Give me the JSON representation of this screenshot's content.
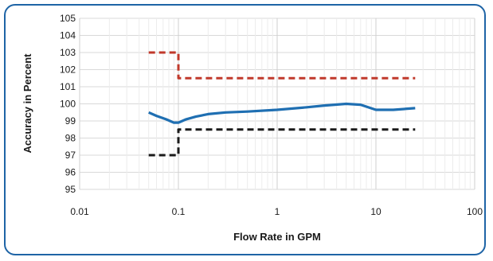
{
  "chart_data": {
    "type": "line",
    "title": "",
    "xlabel": "Flow Rate in GPM",
    "ylabel": "Accuracy in Percent",
    "x_scale": "log",
    "xlim": [
      0.01,
      100
    ],
    "ylim": [
      95,
      105
    ],
    "x_tick_labels": [
      "0.01",
      "0.1",
      "1",
      "10",
      "100"
    ],
    "y_tick_labels": [
      "95",
      "96",
      "97",
      "98",
      "99",
      "100",
      "101",
      "102",
      "103",
      "104",
      "105"
    ],
    "grid": true,
    "legend": "none",
    "series": [
      {
        "color": "#1f6fb2",
        "style": "solid",
        "x": [
          0.05,
          0.06,
          0.075,
          0.09,
          0.1,
          0.12,
          0.15,
          0.2,
          0.3,
          0.5,
          1,
          2,
          3,
          5,
          7,
          10,
          15,
          25
        ],
        "y": [
          99.5,
          99.3,
          99.1,
          98.9,
          98.9,
          99.1,
          99.25,
          99.4,
          99.5,
          99.55,
          99.65,
          99.8,
          99.9,
          100.0,
          99.95,
          99.65,
          99.65,
          99.75
        ]
      },
      {
        "color": "#c0392b",
        "style": "dashed",
        "x": [
          0.05,
          0.1,
          0.1,
          25
        ],
        "y": [
          103.0,
          103.0,
          101.5,
          101.5
        ]
      },
      {
        "color": "#1a1a1a",
        "style": "dashed",
        "x": [
          0.05,
          0.1,
          0.1,
          25
        ],
        "y": [
          97.0,
          97.0,
          98.5,
          98.5
        ]
      }
    ]
  }
}
